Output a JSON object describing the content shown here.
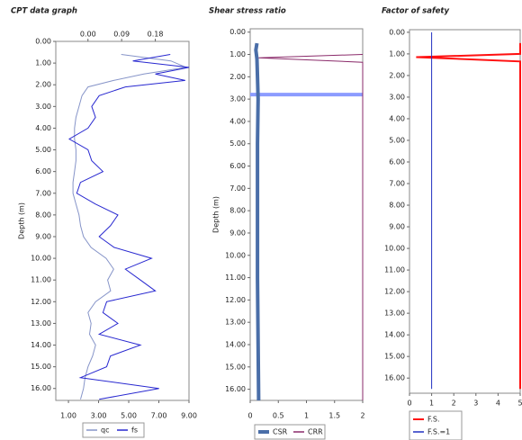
{
  "chart_data": [
    {
      "type": "line",
      "title": "CPT data graph",
      "ylabel": "Depth (m)",
      "ylim": [
        0,
        16.55
      ],
      "yticks": [
        {
          "value": 0,
          "label": "0.00"
        },
        {
          "value": 1,
          "label": "1.00"
        },
        {
          "value": 2,
          "label": "2.00"
        },
        {
          "value": 3,
          "label": "3.00"
        },
        {
          "value": 4,
          "label": "4.00"
        },
        {
          "value": 5,
          "label": "5.00"
        },
        {
          "value": 6,
          "label": "6.00"
        },
        {
          "value": 7,
          "label": "7.00"
        },
        {
          "value": 8,
          "label": "8.00"
        },
        {
          "value": 9,
          "label": "9.00"
        },
        {
          "value": 10,
          "label": "10.00"
        },
        {
          "value": 11,
          "label": "11.00"
        },
        {
          "value": 12,
          "label": "12.00"
        },
        {
          "value": 13,
          "label": "13.00"
        },
        {
          "value": 14,
          "label": "14.00"
        },
        {
          "value": 15,
          "label": "15.00"
        },
        {
          "value": 16,
          "label": "16.00"
        }
      ],
      "xlim": [
        0.16,
        9
      ],
      "xticks": [
        {
          "value": 1,
          "label": "1.00"
        },
        {
          "value": 3,
          "label": "3.00"
        },
        {
          "value": 5,
          "label": "5.00"
        },
        {
          "value": 7,
          "label": "7.00"
        },
        {
          "value": 9,
          "label": "9.00"
        }
      ],
      "x2lim": [
        -0.086,
        0.27
      ],
      "x2ticks": [
        {
          "value": 0,
          "label": "0.00"
        },
        {
          "value": 0.09,
          "label": "0.09"
        },
        {
          "value": 0.18,
          "label": "0.18"
        }
      ],
      "series": [
        {
          "name": "qc",
          "color": "#8694c8",
          "width": 1,
          "y": [
            0.6,
            0.9,
            1.2,
            1.5,
            1.8,
            2.1,
            2.5,
            3,
            3.5,
            4,
            4.5,
            5,
            5.5,
            6,
            6.5,
            7,
            7.5,
            8,
            8.5,
            9,
            9.5,
            10,
            10.5,
            11,
            11.5,
            12,
            12.5,
            13,
            13.5,
            14,
            14.5,
            15,
            15.5,
            16,
            16.5
          ],
          "values": [
            4.5,
            7.8,
            8.8,
            6.0,
            4.0,
            2.3,
            1.9,
            1.7,
            1.5,
            1.4,
            1.4,
            1.5,
            1.5,
            1.4,
            1.3,
            1.3,
            1.5,
            1.7,
            1.8,
            2.0,
            2.5,
            3.5,
            4.0,
            3.6,
            3.8,
            2.8,
            2.3,
            2.5,
            2.4,
            2.8,
            2.6,
            2.3,
            2.1,
            2.0,
            1.8
          ]
        },
        {
          "name": "fs",
          "color": "#2828d0",
          "width": 1,
          "axis": "x2",
          "y": [
            0.6,
            0.9,
            1.2,
            1.5,
            1.8,
            2.1,
            2.5,
            3,
            3.5,
            4,
            4.5,
            5,
            5.5,
            6,
            6.5,
            7,
            7.5,
            8,
            8.5,
            9,
            9.5,
            10,
            10.5,
            11,
            11.5,
            12,
            12.5,
            13,
            13.5,
            14,
            14.5,
            15,
            15.5,
            16,
            16.5
          ],
          "values": [
            0.22,
            0.12,
            0.27,
            0.18,
            0.26,
            0.1,
            0.03,
            0.01,
            0.02,
            0.0,
            -0.05,
            0.0,
            0.01,
            0.04,
            -0.02,
            -0.03,
            0.02,
            0.08,
            0.06,
            0.03,
            0.07,
            0.17,
            0.1,
            0.14,
            0.18,
            0.05,
            0.04,
            0.08,
            0.03,
            0.14,
            0.06,
            0.05,
            -0.02,
            0.19,
            0.03
          ]
        }
      ]
    },
    {
      "type": "line",
      "title": "Shear stress ratio",
      "ylabel": "Depth (m)",
      "ylim": [
        -0.15,
        16.5
      ],
      "yticks": [
        {
          "value": 0,
          "label": "0.00"
        },
        {
          "value": 1,
          "label": "1.00"
        },
        {
          "value": 2,
          "label": "2.00"
        },
        {
          "value": 3,
          "label": "3.00"
        },
        {
          "value": 4,
          "label": "4.00"
        },
        {
          "value": 5,
          "label": "5.00"
        },
        {
          "value": 6,
          "label": "6.00"
        },
        {
          "value": 7,
          "label": "7.00"
        },
        {
          "value": 8,
          "label": "8.00"
        },
        {
          "value": 9,
          "label": "9.00"
        },
        {
          "value": 10,
          "label": "10.00"
        },
        {
          "value": 11,
          "label": "11.00"
        },
        {
          "value": 12,
          "label": "12.00"
        },
        {
          "value": 13,
          "label": "13.00"
        },
        {
          "value": 14,
          "label": "14.00"
        },
        {
          "value": 15,
          "label": "15.00"
        },
        {
          "value": 16,
          "label": "16.00"
        }
      ],
      "xlim": [
        0,
        2
      ],
      "xticks": [
        0,
        0.5,
        1,
        1.5,
        2
      ],
      "hline": {
        "value": 2.8,
        "color": "#8c9cff"
      },
      "series": [
        {
          "name": "CSR",
          "color": "#4a6ea8",
          "width": 4,
          "y": [
            0.5,
            0.8,
            1.2,
            2,
            3,
            5,
            8,
            11,
            14,
            16.5
          ],
          "values": [
            0.12,
            0.1,
            0.12,
            0.13,
            0.14,
            0.13,
            0.13,
            0.13,
            0.14,
            0.15
          ]
        },
        {
          "name": "CRR",
          "color": "#8a2a6a",
          "width": 1,
          "y": [
            1.0,
            1.15,
            1.35,
            16.5
          ],
          "values": [
            2,
            0.15,
            2,
            2
          ]
        }
      ]
    },
    {
      "type": "line",
      "title": "Factor of safety",
      "ylim": [
        -0.12,
        16.7
      ],
      "yticks": [
        {
          "value": 0,
          "label": "0.00"
        },
        {
          "value": 1,
          "label": "1.00"
        },
        {
          "value": 2,
          "label": "2.00"
        },
        {
          "value": 3,
          "label": "3.00"
        },
        {
          "value": 4,
          "label": "4.00"
        },
        {
          "value": 5,
          "label": "5.00"
        },
        {
          "value": 6,
          "label": "6.00"
        },
        {
          "value": 7,
          "label": "7.00"
        },
        {
          "value": 8,
          "label": "8.00"
        },
        {
          "value": 9,
          "label": "9.00"
        },
        {
          "value": 10,
          "label": "10.00"
        },
        {
          "value": 11,
          "label": "11.00"
        },
        {
          "value": 12,
          "label": "12.00"
        },
        {
          "value": 13,
          "label": "13.00"
        },
        {
          "value": 14,
          "label": "14.00"
        },
        {
          "value": 15,
          "label": "15.00"
        },
        {
          "value": 16,
          "label": "16.00"
        }
      ],
      "xlim": [
        0,
        5
      ],
      "xticks": [
        0,
        1,
        2,
        3,
        4,
        5
      ],
      "series": [
        {
          "name": "F.S.",
          "color": "#ff1010",
          "width": 2,
          "y": [
            0.5,
            1.0,
            1.15,
            1.35,
            1.45,
            16.5
          ],
          "values": [
            5,
            5,
            0.3,
            5,
            5,
            5
          ]
        },
        {
          "name": "F.S.=1",
          "color": "#2030c0",
          "width": 1,
          "y": [
            0,
            16.5
          ],
          "values": [
            1,
            1
          ]
        }
      ]
    }
  ]
}
